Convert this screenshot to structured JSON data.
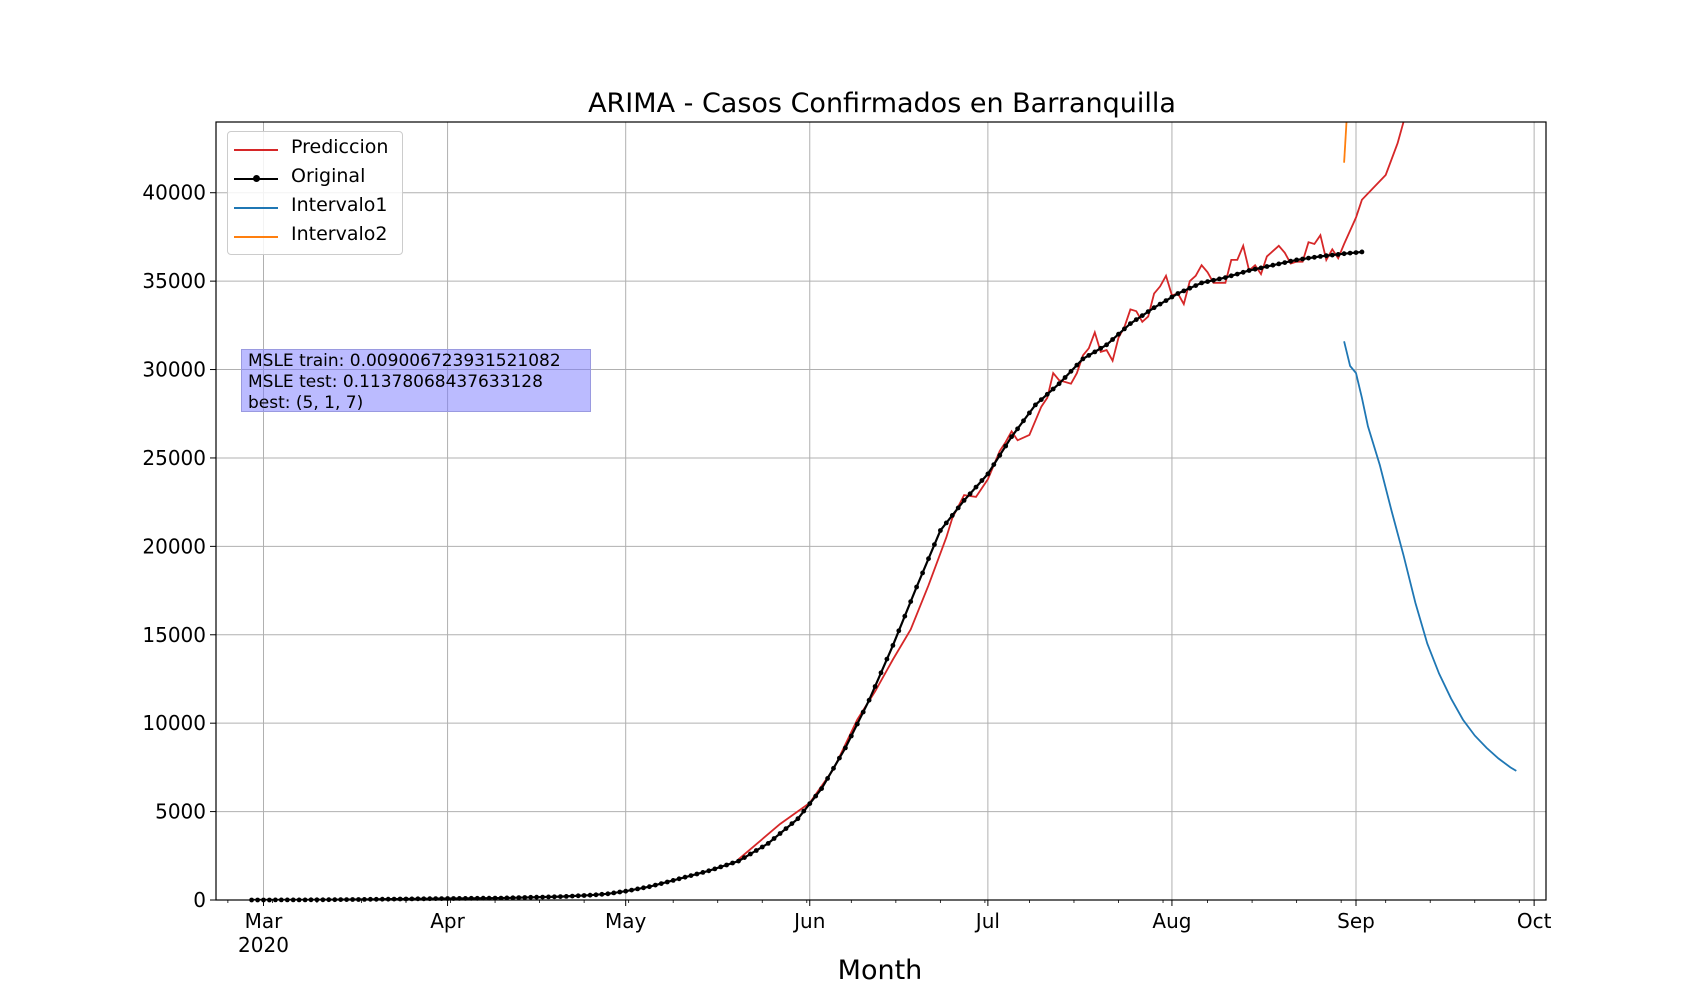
{
  "chart_data": {
    "type": "line",
    "title": "ARIMA - Casos Confirmados en Barranquilla",
    "xlabel": "Month",
    "ylabel": "",
    "ylim": [
      0,
      44000
    ],
    "xlim": [
      "2020-02-22",
      "2020-10-03"
    ],
    "x_ticks": [
      {
        "date": "2020-03-01",
        "label": "Mar",
        "sublabel": "2020"
      },
      {
        "date": "2020-04-01",
        "label": "Apr",
        "sublabel": ""
      },
      {
        "date": "2020-05-01",
        "label": "May",
        "sublabel": ""
      },
      {
        "date": "2020-06-01",
        "label": "Jun",
        "sublabel": ""
      },
      {
        "date": "2020-07-01",
        "label": "Jul",
        "sublabel": ""
      },
      {
        "date": "2020-08-01",
        "label": "Aug",
        "sublabel": ""
      },
      {
        "date": "2020-09-01",
        "label": "Sep",
        "sublabel": ""
      },
      {
        "date": "2020-10-01",
        "label": "Oct",
        "sublabel": ""
      }
    ],
    "y_ticks": [
      0,
      5000,
      10000,
      15000,
      20000,
      25000,
      30000,
      35000,
      40000
    ],
    "grid": true,
    "legend_position": "top-left",
    "series": [
      {
        "name": "Prediccion",
        "color": "#d62728",
        "points": [
          [
            "2020-05-20",
            2300
          ],
          [
            "2020-05-27",
            4300
          ],
          [
            "2020-06-01",
            5500
          ],
          [
            "2020-06-05",
            7400
          ],
          [
            "2020-06-09",
            10200
          ],
          [
            "2020-06-12",
            11800
          ],
          [
            "2020-06-15",
            13600
          ],
          [
            "2020-06-18",
            15300
          ],
          [
            "2020-06-21",
            17800
          ],
          [
            "2020-06-24",
            20500
          ],
          [
            "2020-06-25",
            21600
          ],
          [
            "2020-06-27",
            22900
          ],
          [
            "2020-06-29",
            22800
          ],
          [
            "2020-07-01",
            23800
          ],
          [
            "2020-07-03",
            25400
          ],
          [
            "2020-07-04",
            25900
          ],
          [
            "2020-07-05",
            26500
          ],
          [
            "2020-07-06",
            26000
          ],
          [
            "2020-07-08",
            26300
          ],
          [
            "2020-07-10",
            27900
          ],
          [
            "2020-07-11",
            28400
          ],
          [
            "2020-07-12",
            29800
          ],
          [
            "2020-07-13",
            29400
          ],
          [
            "2020-07-15",
            29200
          ],
          [
            "2020-07-16",
            29800
          ],
          [
            "2020-07-17",
            30800
          ],
          [
            "2020-07-18",
            31200
          ],
          [
            "2020-07-19",
            32100
          ],
          [
            "2020-07-20",
            31000
          ],
          [
            "2020-07-21",
            31100
          ],
          [
            "2020-07-22",
            30500
          ],
          [
            "2020-07-23",
            31800
          ],
          [
            "2020-07-24",
            32400
          ],
          [
            "2020-07-25",
            33400
          ],
          [
            "2020-07-26",
            33300
          ],
          [
            "2020-07-27",
            32700
          ],
          [
            "2020-07-28",
            33000
          ],
          [
            "2020-07-29",
            34300
          ],
          [
            "2020-07-30",
            34700
          ],
          [
            "2020-07-31",
            35300
          ],
          [
            "2020-08-01",
            34200
          ],
          [
            "2020-08-02",
            34300
          ],
          [
            "2020-08-03",
            33700
          ],
          [
            "2020-08-04",
            35000
          ],
          [
            "2020-08-05",
            35300
          ],
          [
            "2020-08-06",
            35900
          ],
          [
            "2020-08-07",
            35500
          ],
          [
            "2020-08-08",
            34900
          ],
          [
            "2020-08-09",
            34900
          ],
          [
            "2020-08-10",
            34900
          ],
          [
            "2020-08-11",
            36200
          ],
          [
            "2020-08-12",
            36200
          ],
          [
            "2020-08-13",
            37000
          ],
          [
            "2020-08-14",
            35600
          ],
          [
            "2020-08-15",
            35900
          ],
          [
            "2020-08-16",
            35400
          ],
          [
            "2020-08-17",
            36400
          ],
          [
            "2020-08-18",
            36700
          ],
          [
            "2020-08-19",
            37000
          ],
          [
            "2020-08-20",
            36600
          ],
          [
            "2020-08-21",
            36000
          ],
          [
            "2020-08-22",
            36100
          ],
          [
            "2020-08-23",
            36100
          ],
          [
            "2020-08-24",
            37200
          ],
          [
            "2020-08-25",
            37100
          ],
          [
            "2020-08-26",
            37600
          ],
          [
            "2020-08-27",
            36200
          ],
          [
            "2020-08-28",
            36800
          ],
          [
            "2020-08-29",
            36300
          ],
          [
            "2020-08-30",
            37100
          ],
          [
            "2020-09-01",
            38600
          ],
          [
            "2020-09-02",
            39600
          ],
          [
            "2020-09-04",
            40300
          ],
          [
            "2020-09-06",
            41000
          ],
          [
            "2020-09-08",
            42800
          ],
          [
            "2020-09-09",
            44000
          ]
        ]
      },
      {
        "name": "Original",
        "color": "#000000",
        "markers": true,
        "points": [
          [
            "2020-02-28",
            0
          ],
          [
            "2020-03-10",
            10
          ],
          [
            "2020-03-20",
            40
          ],
          [
            "2020-03-31",
            80
          ],
          [
            "2020-04-10",
            110
          ],
          [
            "2020-04-20",
            190
          ],
          [
            "2020-04-25",
            270
          ],
          [
            "2020-04-28",
            350
          ],
          [
            "2020-05-01",
            500
          ],
          [
            "2020-05-05",
            750
          ],
          [
            "2020-05-10",
            1200
          ],
          [
            "2020-05-15",
            1650
          ],
          [
            "2020-05-20",
            2200
          ],
          [
            "2020-05-25",
            3200
          ],
          [
            "2020-05-30",
            4600
          ],
          [
            "2020-06-03",
            6300
          ],
          [
            "2020-06-07",
            8600
          ],
          [
            "2020-06-11",
            11300
          ],
          [
            "2020-06-15",
            14400
          ],
          [
            "2020-06-19",
            17700
          ],
          [
            "2020-06-23",
            20900
          ],
          [
            "2020-06-27",
            22600
          ],
          [
            "2020-07-01",
            24100
          ],
          [
            "2020-07-05",
            26200
          ],
          [
            "2020-07-09",
            28000
          ],
          [
            "2020-07-13",
            29200
          ],
          [
            "2020-07-17",
            30600
          ],
          [
            "2020-07-21",
            31400
          ],
          [
            "2020-07-25",
            32600
          ],
          [
            "2020-07-29",
            33500
          ],
          [
            "2020-08-02",
            34300
          ],
          [
            "2020-08-06",
            34900
          ],
          [
            "2020-08-10",
            35200
          ],
          [
            "2020-08-14",
            35600
          ],
          [
            "2020-08-18",
            35900
          ],
          [
            "2020-08-22",
            36200
          ],
          [
            "2020-08-26",
            36400
          ],
          [
            "2020-08-30",
            36550
          ],
          [
            "2020-09-02",
            36650
          ]
        ]
      },
      {
        "name": "Intervalo1",
        "color": "#1f77b4",
        "points": [
          [
            "2020-08-30",
            31600
          ],
          [
            "2020-08-31",
            30200
          ],
          [
            "2020-09-01",
            29800
          ],
          [
            "2020-09-02",
            28400
          ],
          [
            "2020-09-03",
            26800
          ],
          [
            "2020-09-05",
            24600
          ],
          [
            "2020-09-07",
            22000
          ],
          [
            "2020-09-09",
            19500
          ],
          [
            "2020-09-11",
            16800
          ],
          [
            "2020-09-13",
            14500
          ],
          [
            "2020-09-15",
            12800
          ],
          [
            "2020-09-17",
            11400
          ],
          [
            "2020-09-19",
            10200
          ],
          [
            "2020-09-21",
            9300
          ],
          [
            "2020-09-23",
            8600
          ],
          [
            "2020-09-25",
            8000
          ],
          [
            "2020-09-27",
            7500
          ],
          [
            "2020-09-28",
            7300
          ]
        ]
      },
      {
        "name": "Intervalo2",
        "color": "#ff7f0e",
        "points": [
          [
            "2020-08-30",
            41700
          ],
          [
            "2020-08-30.4",
            44000
          ]
        ]
      }
    ],
    "annotation": {
      "lines": [
        "MSLE train: 0.009006723931521082",
        "MSLE test: 0.11378068437633128",
        "best: (5, 1, 7)"
      ]
    }
  }
}
